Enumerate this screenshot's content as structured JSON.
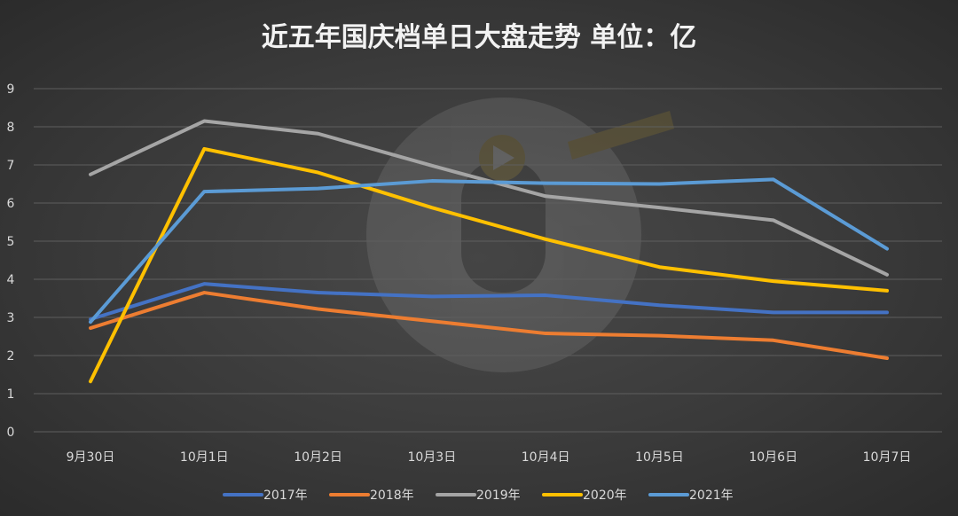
{
  "chart_data": {
    "type": "line",
    "title": "近五年国庆档单日大盘走势 单位：亿",
    "categories": [
      "9月30日",
      "10月1日",
      "10月2日",
      "10月3日",
      "10月4日",
      "10月5日",
      "10月6日",
      "10月7日"
    ],
    "yticks": [
      "0",
      "1",
      "2",
      "3",
      "4",
      "5",
      "6",
      "7",
      "8",
      "9"
    ],
    "ylim": [
      0,
      9
    ],
    "grid": true,
    "legend_position": "bottom",
    "series": [
      {
        "name": "2017年",
        "color": "#4472c4",
        "values": [
          2.95,
          3.88,
          3.65,
          3.55,
          3.58,
          3.32,
          3.13,
          3.13
        ]
      },
      {
        "name": "2018年",
        "color": "#ed7d31",
        "values": [
          2.72,
          3.65,
          3.22,
          2.9,
          2.58,
          2.52,
          2.4,
          1.93
        ]
      },
      {
        "name": "2019年",
        "color": "#a5a5a5",
        "values": [
          6.75,
          8.15,
          7.82,
          6.98,
          6.18,
          5.88,
          5.55,
          4.12
        ]
      },
      {
        "name": "2020年",
        "color": "#ffc000",
        "values": [
          1.32,
          7.42,
          6.8,
          5.88,
          5.05,
          4.32,
          3.95,
          3.7
        ]
      },
      {
        "name": "2021年",
        "color": "#5b9bd5",
        "values": [
          2.88,
          6.3,
          6.38,
          6.58,
          6.52,
          6.5,
          6.62,
          4.8
        ]
      }
    ]
  }
}
